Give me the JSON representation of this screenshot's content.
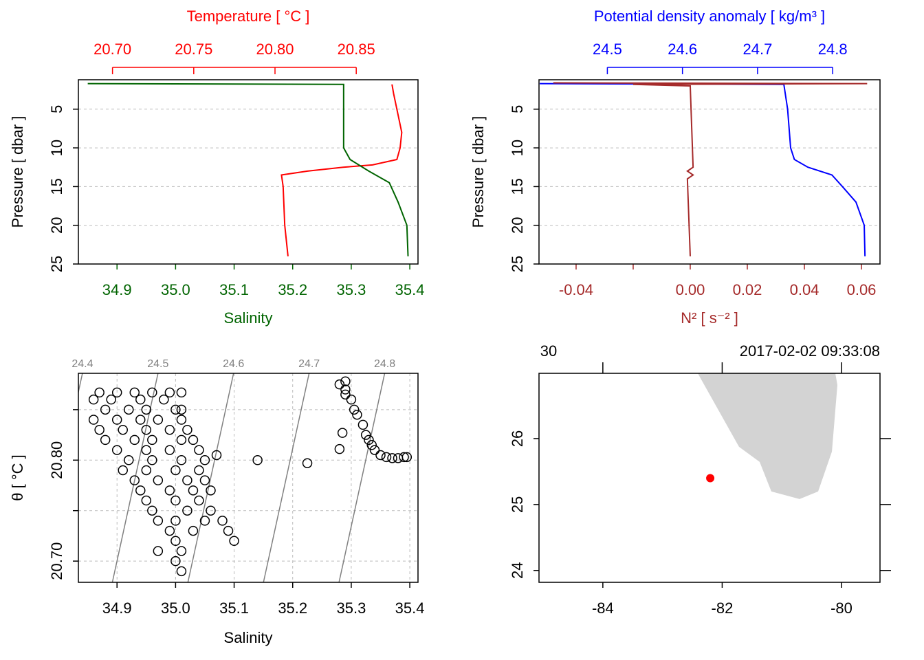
{
  "chart_data": [
    {
      "type": "profile",
      "y_label": "Pressure [ dbar ]",
      "ylim": [
        25,
        1.2
      ],
      "yticks": [
        5,
        10,
        15,
        20,
        25
      ],
      "grid": true,
      "x_label": "Salinity",
      "xlim": [
        34.834,
        35.414
      ],
      "xticks": [
        34.9,
        {
          "value": 35.0,
          "label": "35.0"
        },
        35.1,
        35.2,
        35.3,
        35.4
      ],
      "x2_label": "Temperature [ °C ]",
      "x2lim": [
        20.679,
        20.888
      ],
      "x2ticks": [
        {
          "value": 20.7,
          "label": "20.70"
        },
        20.75,
        {
          "value": 20.8,
          "label": "20.80"
        },
        20.85
      ],
      "series": [
        {
          "axis": "x2",
          "color": "#ff0000",
          "pressure": [
            1.8,
            3,
            5,
            8,
            10,
            11.5,
            12.2,
            12.5,
            13,
            13.5,
            15,
            20,
            24
          ],
          "values": [
            20.872,
            20.873,
            20.875,
            20.878,
            20.877,
            20.875,
            20.86,
            20.842,
            20.82,
            20.804,
            20.805,
            20.806,
            20.808
          ]
        },
        {
          "axis": "x",
          "color": "#006400",
          "pressure": [
            1.7,
            1.8,
            5,
            10,
            11.5,
            13,
            14.5,
            17,
            20,
            24
          ],
          "values": [
            34.85,
            35.287,
            35.287,
            35.287,
            35.298,
            35.33,
            35.365,
            35.38,
            35.395,
            35.397
          ]
        }
      ]
    },
    {
      "type": "profile",
      "y_label": "Pressure [ dbar ]",
      "ylim": [
        25,
        1.2
      ],
      "yticks": [
        5,
        10,
        15,
        20,
        25
      ],
      "grid": true,
      "x_label": "N² [ s⁻² ]",
      "xlim": [
        -0.053,
        0.0665
      ],
      "xticks": [
        -0.04,
        {
          "value": -0.02,
          "label": null
        },
        {
          "value": 0,
          "label": "0.00"
        },
        0.02,
        0.04,
        0.06
      ],
      "x2_label": "Potential density anomaly [ kg/m³ ]",
      "x2lim": [
        24.409,
        24.863
      ],
      "x2ticks": [
        24.5,
        24.6,
        24.7,
        24.8
      ],
      "series": [
        {
          "axis": "x2",
          "color": "#0000ff",
          "pressure": [
            1.7,
            1.8,
            5,
            10,
            11.5,
            12.5,
            13.5,
            15,
            17,
            20,
            24
          ],
          "values": [
            24.41,
            24.735,
            24.74,
            24.744,
            24.749,
            24.767,
            24.799,
            24.813,
            24.831,
            24.842,
            24.843
          ]
        },
        {
          "axis": "x",
          "color": "#a52a2a",
          "pressure": [
            1.6,
            1.7,
            1.8,
            2.0,
            12.5,
            13,
            13.5,
            14,
            24
          ],
          "values": [
            -0.048,
            0.062,
            -0.02,
            0,
            0.001,
            -0.001,
            0.001,
            -0.001,
            0
          ]
        }
      ]
    },
    {
      "type": "scatter",
      "x_label": "Salinity",
      "y_label": "θ [ °C ]",
      "xlim": [
        34.834,
        35.414
      ],
      "xticks": [
        34.9,
        {
          "value": 35.0,
          "label": "35.0"
        },
        35.1,
        35.2,
        35.3,
        35.4
      ],
      "ylim": [
        20.679,
        20.886
      ],
      "yticks": [
        {
          "value": 20.7,
          "label": "20.70"
        },
        {
          "value": 20.75,
          "label": null
        },
        {
          "value": 20.8,
          "label": "20.80"
        },
        {
          "value": 20.85,
          "label": null
        }
      ],
      "grid": true,
      "color": "#000000",
      "isopycnals": {
        "levels": [
          24.4,
          24.5,
          24.6,
          24.7,
          24.8
        ],
        "color": "#808080"
      },
      "x": [
        34.87,
        34.9,
        34.93,
        34.96,
        34.99,
        35.01,
        34.86,
        34.89,
        34.94,
        34.98,
        34.88,
        34.92,
        34.95,
        35.0,
        35.01,
        34.86,
        34.9,
        34.94,
        34.97,
        35.01,
        34.87,
        34.91,
        34.95,
        34.99,
        35.02,
        34.88,
        34.93,
        34.96,
        35.01,
        35.03,
        34.9,
        34.95,
        34.99,
        35.04,
        34.92,
        34.96,
        35.01,
        35.05,
        34.91,
        34.95,
        35.0,
        35.04,
        34.93,
        34.97,
        35.02,
        35.05,
        34.94,
        34.99,
        35.03,
        35.06,
        34.95,
        35.0,
        35.04,
        34.96,
        35.02,
        35.06,
        34.97,
        35.0,
        35.05,
        35.08,
        34.99,
        35.03,
        35.09,
        35.0,
        35.1,
        34.97,
        35.01,
        35.0,
        35.01,
        35.07,
        35.14,
        35.225,
        35.28,
        35.285,
        35.28,
        35.29,
        35.29,
        35.29,
        35.3,
        35.305,
        35.31,
        35.32,
        35.325,
        35.33,
        35.335,
        35.34,
        35.35,
        35.36,
        35.37,
        35.38,
        35.39,
        35.395
      ],
      "y": [
        20.867,
        20.867,
        20.867,
        20.867,
        20.867,
        20.867,
        20.86,
        20.86,
        20.86,
        20.86,
        20.85,
        20.85,
        20.85,
        20.85,
        20.85,
        20.84,
        20.84,
        20.84,
        20.84,
        20.84,
        20.83,
        20.83,
        20.83,
        20.83,
        20.83,
        20.82,
        20.82,
        20.82,
        20.82,
        20.82,
        20.81,
        20.81,
        20.81,
        20.81,
        20.8,
        20.8,
        20.8,
        20.8,
        20.79,
        20.79,
        20.79,
        20.79,
        20.78,
        20.78,
        20.78,
        20.78,
        20.77,
        20.77,
        20.77,
        20.77,
        20.76,
        20.76,
        20.76,
        20.75,
        20.75,
        20.75,
        20.74,
        20.74,
        20.74,
        20.74,
        20.73,
        20.73,
        20.73,
        20.72,
        20.72,
        20.71,
        20.71,
        20.7,
        20.69,
        20.805,
        20.8,
        20.797,
        20.811,
        20.827,
        20.875,
        20.878,
        20.87,
        20.865,
        20.86,
        20.85,
        20.845,
        20.835,
        20.825,
        20.82,
        20.815,
        20.81,
        20.805,
        20.803,
        20.802,
        20.802,
        20.803,
        20.803
      ]
    },
    {
      "type": "map",
      "top_labels": [
        "30",
        "2017-02-02 09:33:08"
      ],
      "xlim": [
        -85.07,
        -79.355
      ],
      "xticks": [
        -84,
        -82,
        -80
      ],
      "ylim": [
        23.82,
        26.99
      ],
      "yticks": [
        24,
        25,
        26
      ],
      "coastline": {
        "color": "#d3d3d3",
        "lon": [
          -82.409,
          -81.718,
          -81.372,
          -81.176,
          -80.703,
          -80.392,
          -80.161,
          -80.069,
          -80.104
        ],
        "lat": [
          26.99,
          25.875,
          25.646,
          25.198,
          25.083,
          25.198,
          25.802,
          26.813,
          26.99
        ]
      },
      "station": {
        "color": "#ff0000",
        "lon": -82.2,
        "lat": 25.4
      }
    }
  ]
}
